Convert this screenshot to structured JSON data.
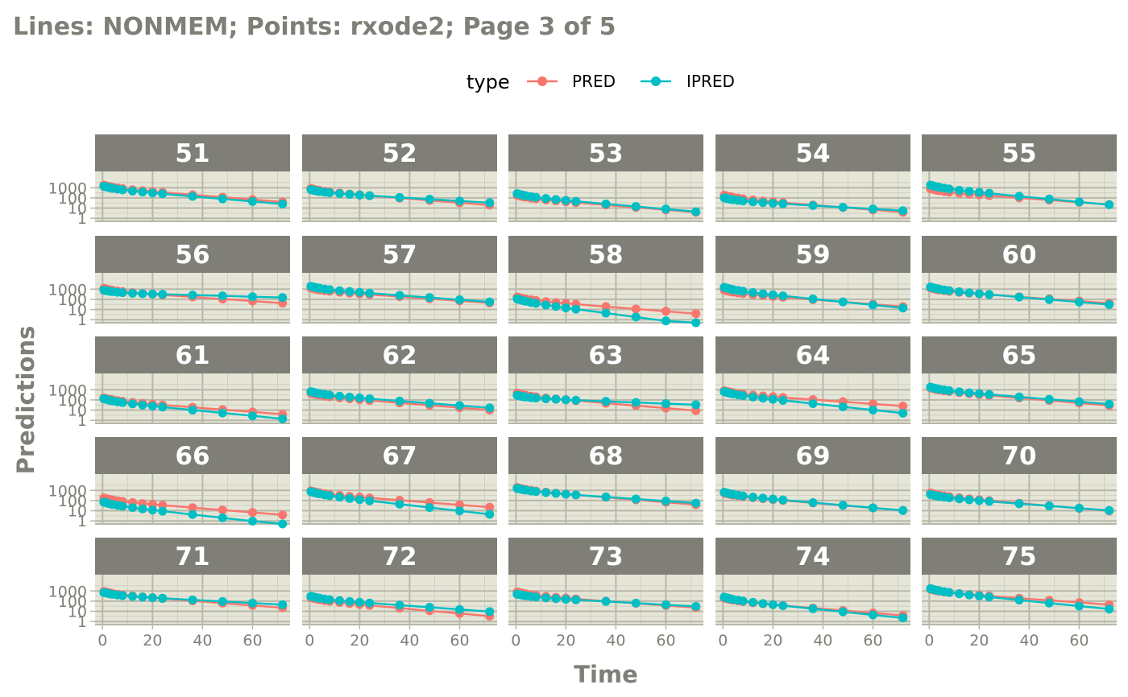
{
  "chart_data": {
    "type": "line",
    "title": "Lines: NONMEM; Points: rxode2; Page 3 of 5",
    "xlabel": "Time",
    "ylabel": "Predictions",
    "legend": {
      "title": "type",
      "position": "top",
      "entries": [
        {
          "name": "PRED",
          "color": "#F8766D"
        },
        {
          "name": "IPRED",
          "color": "#00BFC4"
        }
      ]
    },
    "x_ticks": [
      0,
      20,
      40,
      60
    ],
    "x_range": [
      -3,
      75
    ],
    "y_scale": "log10",
    "y_ticks": [
      {
        "value": 1,
        "label": "1"
      },
      {
        "value": 10,
        "label": "10"
      },
      {
        "value": 100,
        "label": "100"
      },
      {
        "value": 1000,
        "label": "1000"
      }
    ],
    "y_range": [
      0.5,
      40000
    ],
    "grid": true,
    "x": [
      0.5,
      1,
      2,
      3,
      4,
      6,
      8,
      12,
      16,
      20,
      24,
      36,
      48,
      60,
      72
    ],
    "panels": [
      {
        "id": "51",
        "pred": [
          1800,
          72
        ],
        "ipred": [
          1400,
          45
        ]
      },
      {
        "id": "52",
        "pred": [
          850,
          35
        ],
        "ipred": [
          650,
          60
        ]
      },
      {
        "id": "53",
        "pred": [
          180,
          7
        ],
        "ipred": [
          260,
          8
        ]
      },
      {
        "id": "54",
        "pred": [
          180,
          7
        ],
        "ipred": [
          100,
          10
        ]
      },
      {
        "id": "55",
        "pred": [
          800,
          40
        ],
        "ipred": [
          1800,
          38
        ]
      },
      {
        "id": "56",
        "pred": [
          1200,
          75
        ],
        "ipred": [
          800,
          270
        ]
      },
      {
        "id": "57",
        "pred": [
          1300,
          80
        ],
        "ipred": [
          1900,
          100
        ]
      },
      {
        "id": "58",
        "pred": [
          170,
          7
        ],
        "ipred": [
          110,
          0.55
        ]
      },
      {
        "id": "59",
        "pred": [
          800,
          35
        ],
        "ipred": [
          1500,
          25
        ]
      },
      {
        "id": "60",
        "pred": [
          1300,
          75
        ],
        "ipred": [
          1600,
          55
        ]
      },
      {
        "id": "61",
        "pred": [
          160,
          7
        ],
        "ipred": [
          130,
          2.5
        ]
      },
      {
        "id": "62",
        "pred": [
          450,
          18
        ],
        "ipred": [
          650,
          30
        ]
      },
      {
        "id": "63",
        "pred": [
          450,
          16
        ],
        "ipred": [
          280,
          60
        ]
      },
      {
        "id": "64",
        "pred": [
          800,
          45
        ],
        "ipred": [
          650,
          9
        ]
      },
      {
        "id": "65",
        "pred": [
          1500,
          50
        ],
        "ipred": [
          1800,
          70
        ]
      },
      {
        "id": "66",
        "pred": [
          180,
          7
        ],
        "ipred": [
          70,
          0.8
        ]
      },
      {
        "id": "67",
        "pred": [
          900,
          40
        ],
        "ipred": [
          750,
          8
        ]
      },
      {
        "id": "68",
        "pred": [
          1900,
          70
        ],
        "ipred": [
          1600,
          100
        ]
      },
      {
        "id": "69",
        "pred": [
          550,
          19
        ],
        "ipred": [
          650,
          19
        ]
      },
      {
        "id": "70",
        "pred": [
          550,
          17
        ],
        "ipred": [
          400,
          19
        ]
      },
      {
        "id": "71",
        "pred": [
          900,
          40
        ],
        "ipred": [
          700,
          80
        ]
      },
      {
        "id": "72",
        "pred": [
          220,
          6
        ],
        "ipred": [
          300,
          17
        ]
      },
      {
        "id": "73",
        "pred": [
          800,
          40
        ],
        "ipred": [
          500,
          55
        ]
      },
      {
        "id": "74",
        "pred": [
          200,
          7
        ],
        "ipred": [
          250,
          4
        ]
      },
      {
        "id": "75",
        "pred": [
          1500,
          80
        ],
        "ipred": [
          1700,
          30
        ]
      }
    ]
  }
}
